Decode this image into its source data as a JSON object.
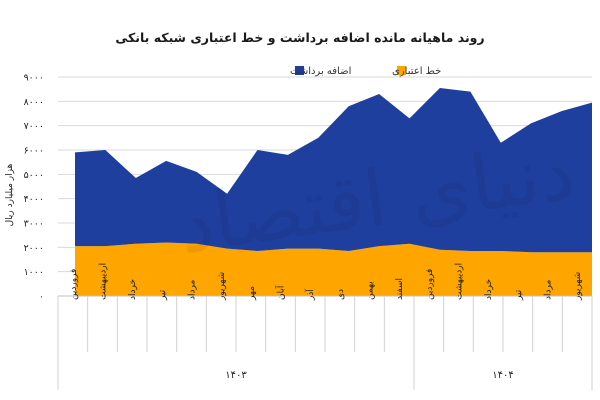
{
  "chart_data": {
    "type": "area",
    "title": "روند ماهیانه مانده اضافه برداشت و خط اعتباری شبکه بانکی",
    "ylabel": "هزار میلیارد ریال",
    "ylim": [
      0,
      9000
    ],
    "yticks": [
      "۰",
      "۱۰۰۰",
      "۲۰۰۰",
      "۳۰۰۰",
      "۴۰۰۰",
      "۵۰۰۰",
      "۶۰۰۰",
      "۷۰۰۰",
      "۸۰۰۰",
      "۹۰۰۰"
    ],
    "ytick_values": [
      0,
      1000,
      2000,
      3000,
      4000,
      5000,
      6000,
      7000,
      8000,
      9000
    ],
    "stacked": true,
    "grid": true,
    "legend_position": "top",
    "categories": [
      "فروردین",
      "اردیبهشت",
      "خرداد",
      "تیر",
      "مرداد",
      "شهریور",
      "مهر",
      "آبان",
      "آذر",
      "دی",
      "بهمن",
      "اسفند",
      "فروردین",
      "اردیبهشت",
      "خرداد",
      "تیر",
      "مرداد",
      "شهریور"
    ],
    "groups": [
      {
        "label": "۱۴۰۳",
        "count": 12
      },
      {
        "label": "۱۴۰۴",
        "count": 6
      }
    ],
    "series": [
      {
        "name": "خط اعتباری",
        "color": "#FFA500",
        "values": [
          2050,
          2050,
          2150,
          2200,
          2150,
          1950,
          1850,
          1950,
          1950,
          1850,
          2050,
          2150,
          1900,
          1850,
          1850,
          1800,
          1800,
          1800
        ]
      },
      {
        "name": "اضافه برداشت",
        "color": "#1F3F9F",
        "values": [
          3850,
          3950,
          2700,
          3350,
          2950,
          2250,
          4150,
          3850,
          4550,
          5950,
          6250,
          5150,
          6650,
          6550,
          4450,
          5300,
          5800,
          6150
        ]
      }
    ],
    "watermark": "دنیای اقتصاد"
  }
}
